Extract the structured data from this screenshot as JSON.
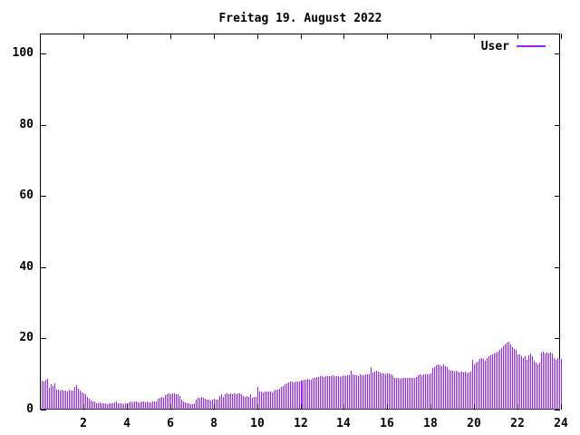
{
  "title": "Freitag 19. August 2022",
  "legend": {
    "label": "User",
    "color": "#a020f0"
  },
  "chart_data": {
    "type": "bar",
    "style": "impulses",
    "title": "Freitag 19. August 2022",
    "xlabel": "",
    "ylabel": "",
    "xlim": [
      0,
      24
    ],
    "ylim": [
      0,
      100
    ],
    "x_ticks": [
      2,
      4,
      6,
      8,
      10,
      12,
      14,
      16,
      18,
      20,
      22,
      24
    ],
    "y_ticks": [
      0,
      20,
      40,
      60,
      80,
      100
    ],
    "grid": false,
    "bar_color": "#a020f0",
    "background_color": "#ffffff",
    "legend_position": "top-right-inside",
    "series": [
      {
        "name": "User",
        "interval_minutes": 5,
        "x_start_hour": 0.0833,
        "values": [
          8.1,
          7.9,
          8.3,
          8.7,
          6.1,
          7.2,
          6.7,
          7.4,
          5.7,
          5.5,
          5.4,
          5.5,
          5.3,
          5.4,
          5.2,
          5.5,
          5.3,
          5.4,
          6.4,
          6.9,
          5.8,
          5.4,
          4.8,
          4.6,
          4.3,
          3.5,
          3.1,
          2.6,
          2.4,
          2.2,
          1.9,
          1.8,
          2.0,
          1.9,
          1.8,
          1.7,
          1.6,
          1.8,
          1.7,
          1.9,
          2.1,
          2.3,
          1.9,
          1.7,
          1.8,
          1.6,
          1.7,
          1.8,
          2.0,
          2.2,
          2.1,
          2.3,
          2.2,
          2.0,
          2.1,
          2.2,
          2.3,
          2.1,
          2.2,
          2.0,
          2.1,
          2.2,
          2.3,
          2.4,
          3.1,
          3.3,
          3.5,
          3.4,
          4.1,
          4.3,
          4.5,
          4.4,
          4.6,
          4.7,
          4.4,
          4.3,
          3.9,
          2.7,
          2.3,
          2.0,
          1.9,
          1.7,
          1.5,
          1.6,
          1.8,
          2.9,
          3.2,
          3.4,
          3.5,
          3.3,
          3.1,
          2.8,
          2.7,
          2.6,
          2.8,
          3.0,
          2.9,
          2.8,
          3.9,
          4.3,
          3.6,
          4.2,
          4.5,
          4.4,
          4.6,
          4.3,
          4.5,
          4.4,
          4.6,
          4.7,
          4.4,
          3.7,
          3.6,
          3.8,
          3.5,
          4.3,
          3.4,
          3.6,
          3.5,
          6.4,
          5.0,
          5.2,
          4.9,
          5.1,
          5.0,
          5.2,
          5.1,
          4.9,
          5.3,
          5.5,
          5.6,
          5.8,
          6.3,
          6.6,
          7.0,
          7.4,
          7.7,
          7.9,
          7.8,
          7.6,
          7.9,
          7.8,
          8.0,
          8.2,
          8.1,
          8.3,
          8.4,
          8.6,
          8.3,
          8.5,
          8.8,
          9.0,
          9.2,
          9.1,
          9.3,
          9.4,
          9.2,
          9.4,
          9.3,
          9.5,
          9.4,
          9.6,
          9.3,
          9.5,
          9.4,
          9.2,
          9.5,
          9.6,
          9.5,
          9.7,
          9.6,
          10.9,
          9.8,
          9.6,
          9.7,
          9.5,
          9.8,
          9.6,
          9.7,
          9.9,
          9.8,
          10.0,
          12.0,
          10.4,
          10.6,
          11.0,
          10.8,
          10.5,
          10.3,
          10.1,
          10.0,
          10.2,
          10.3,
          9.9,
          9.7,
          9.0,
          8.8,
          8.9,
          8.7,
          8.9,
          8.8,
          9.0,
          8.9,
          8.8,
          8.9,
          9.0,
          8.8,
          9.1,
          9.6,
          9.8,
          9.7,
          9.9,
          10.0,
          9.8,
          9.9,
          10.1,
          11.6,
          12.0,
          12.4,
          12.8,
          12.5,
          12.2,
          12.6,
          12.3,
          11.9,
          11.1,
          10.9,
          11.0,
          10.8,
          11.0,
          10.7,
          10.5,
          10.6,
          10.4,
          10.6,
          10.3,
          10.5,
          10.7,
          14.1,
          12.8,
          13.2,
          13.6,
          14.3,
          14.6,
          14.3,
          13.7,
          14.5,
          14.9,
          15.2,
          15.5,
          15.7,
          16.0,
          16.4,
          16.9,
          17.4,
          17.8,
          18.3,
          18.8,
          19.0,
          18.4,
          17.6,
          17.0,
          16.9,
          15.5,
          15.5,
          14.9,
          14.5,
          14.9,
          14.1,
          15.3,
          15.8,
          14.9,
          13.7,
          13.2,
          12.8,
          13.2,
          16.0,
          16.2,
          15.9,
          16.1,
          15.8,
          16.0,
          15.8,
          14.5,
          14.1,
          14.5,
          14.2,
          14.3
        ]
      }
    ]
  }
}
